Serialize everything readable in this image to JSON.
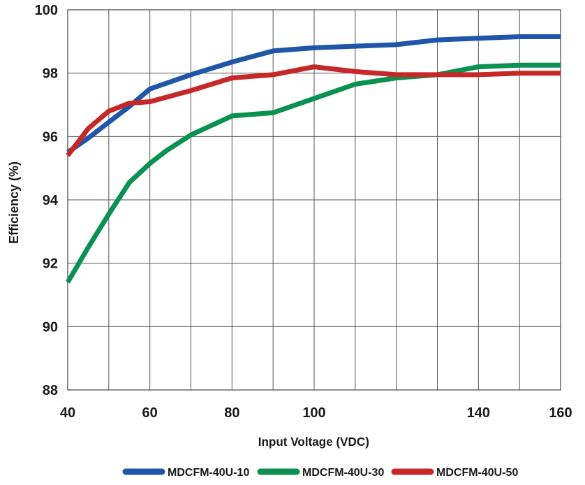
{
  "chart_data": {
    "type": "line",
    "title": "",
    "xlabel": "Input Voltage (VDC)",
    "ylabel": "Efficiency (%)",
    "xlim": [
      40,
      160
    ],
    "ylim": [
      88,
      100
    ],
    "x_ticks": [
      40,
      50,
      60,
      70,
      80,
      90,
      100,
      110,
      120,
      130,
      140,
      150,
      160
    ],
    "x_tick_labels": [
      {
        "value": 40,
        "label": "40"
      },
      {
        "value": 60,
        "label": "60"
      },
      {
        "value": 80,
        "label": "80"
      },
      {
        "value": 100,
        "label": "100"
      },
      {
        "value": 140,
        "label": "140"
      },
      {
        "value": 160,
        "label": "160"
      }
    ],
    "y_ticks": [
      88,
      90,
      92,
      94,
      96,
      98,
      100
    ],
    "y_tick_labels": [
      "88",
      "90",
      "92",
      "94",
      "96",
      "98",
      "100"
    ],
    "grid": true,
    "legend_position": "bottom",
    "series": [
      {
        "name": "MDCFM-40U-10",
        "color": "#1f56a8",
        "points": [
          [
            40,
            95.5
          ],
          [
            45,
            95.95
          ],
          [
            50,
            96.45
          ],
          [
            55,
            96.95
          ],
          [
            60,
            97.5
          ],
          [
            70,
            97.95
          ],
          [
            80,
            98.35
          ],
          [
            90,
            98.7
          ],
          [
            100,
            98.8
          ],
          [
            110,
            98.85
          ],
          [
            120,
            98.9
          ],
          [
            130,
            99.05
          ],
          [
            140,
            99.1
          ],
          [
            150,
            99.15
          ],
          [
            160,
            99.15
          ]
        ]
      },
      {
        "name": "MDCFM-40U-30",
        "color": "#0a9150",
        "points": [
          [
            40,
            91.4
          ],
          [
            45,
            92.5
          ],
          [
            50,
            93.55
          ],
          [
            55,
            94.55
          ],
          [
            60,
            95.15
          ],
          [
            64,
            95.55
          ],
          [
            70,
            96.05
          ],
          [
            75,
            96.35
          ],
          [
            80,
            96.65
          ],
          [
            90,
            96.75
          ],
          [
            100,
            97.2
          ],
          [
            110,
            97.65
          ],
          [
            120,
            97.85
          ],
          [
            130,
            97.95
          ],
          [
            140,
            98.2
          ],
          [
            150,
            98.25
          ],
          [
            160,
            98.25
          ]
        ]
      },
      {
        "name": "MDCFM-40U-50",
        "color": "#c62828",
        "points": [
          [
            40,
            95.4
          ],
          [
            45,
            96.25
          ],
          [
            50,
            96.8
          ],
          [
            55,
            97.05
          ],
          [
            60,
            97.1
          ],
          [
            70,
            97.45
          ],
          [
            80,
            97.85
          ],
          [
            90,
            97.95
          ],
          [
            100,
            98.2
          ],
          [
            110,
            98.05
          ],
          [
            120,
            97.95
          ],
          [
            130,
            97.95
          ],
          [
            140,
            97.95
          ],
          [
            150,
            98.0
          ],
          [
            160,
            98.0
          ]
        ]
      }
    ]
  }
}
